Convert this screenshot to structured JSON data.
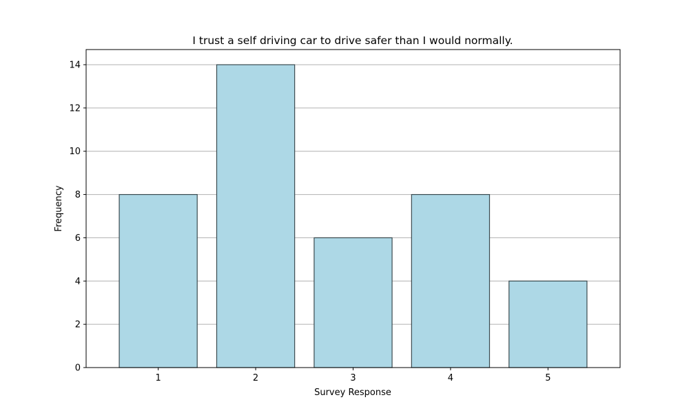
{
  "chart_data": {
    "type": "bar",
    "title": "I trust a self driving car to drive safer than I would normally.",
    "xlabel": "Survey Response",
    "ylabel": "Frequency",
    "categories": [
      "1",
      "2",
      "3",
      "4",
      "5"
    ],
    "values": [
      8,
      14,
      6,
      8,
      4
    ],
    "ylim": [
      0,
      14.7
    ],
    "yticks": [
      "0",
      "2",
      "4",
      "6",
      "8",
      "10",
      "12",
      "14"
    ],
    "grid": "y-axis",
    "legend": "none",
    "colors": {
      "bar_fill": "#add8e6",
      "bar_edge": "#3a4a4f",
      "grid": "#b0b0b0",
      "axis": "#000000"
    }
  }
}
